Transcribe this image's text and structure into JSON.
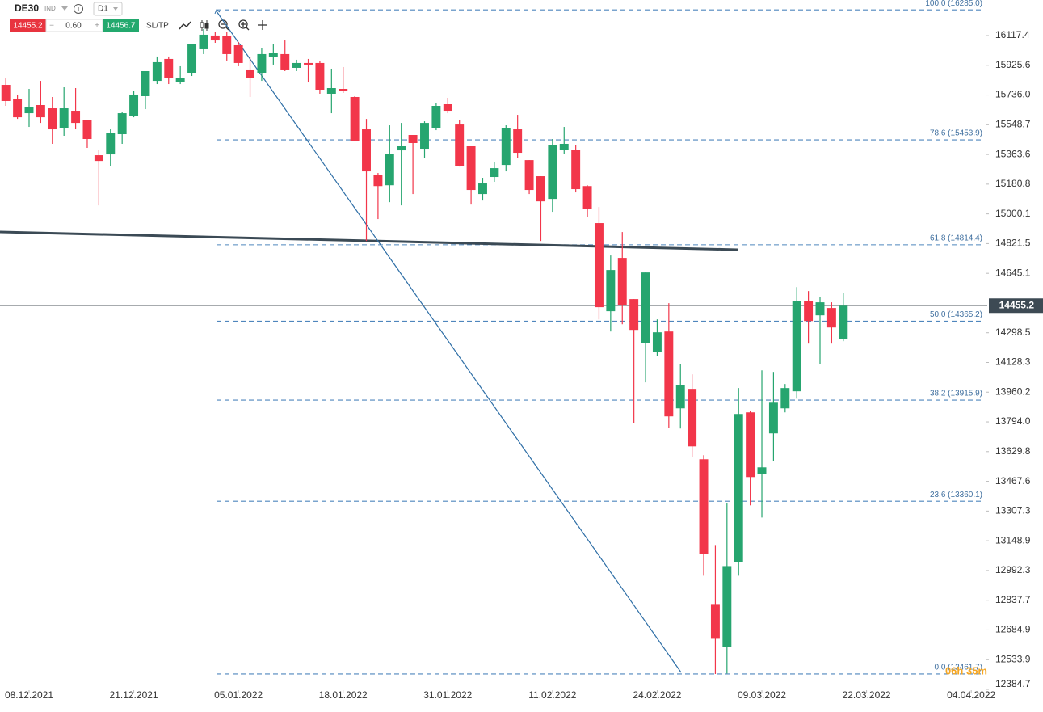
{
  "toolbar": {
    "symbol": "DE30",
    "market": "IND",
    "timeframe": "D1",
    "bid": "14455.2",
    "spread": "0.60",
    "ask": "14456.7",
    "sl_tp": "SL/TP",
    "timer": "06h 35m"
  },
  "chart_data": {
    "type": "candlestick",
    "log_scale": true,
    "up_color": "#26a56f",
    "down_color": "#f2364a",
    "xlim": [
      -0.5,
      84.1
    ],
    "ylim": [
      12384.7,
      16350
    ],
    "xticks": [
      {
        "value": 2,
        "label": "08.12.2021"
      },
      {
        "value": 11,
        "label": "21.12.2021"
      },
      {
        "value": 20,
        "label": "05.01.2022"
      },
      {
        "value": 29,
        "label": "18.01.2022"
      },
      {
        "value": 38,
        "label": "31.01.2022"
      },
      {
        "value": 47,
        "label": "11.02.2022"
      },
      {
        "value": 56,
        "label": "24.02.2022"
      },
      {
        "value": 65,
        "label": "09.03.2022"
      },
      {
        "value": 74,
        "label": "22.03.2022"
      },
      {
        "value": 83,
        "label": "04.04.2022"
      }
    ],
    "yticks": [
      16117.4,
      15925.6,
      {
        "value": 15736.0,
        "label": "15736.0"
      },
      15548.7,
      15363.6,
      15180.8,
      15000.1,
      14821.5,
      14645.1,
      14298.5,
      14128.3,
      13960.2,
      {
        "value": 13794.0,
        "label": "13794.0"
      },
      13629.8,
      13467.6,
      13307.3,
      13148.9,
      12992.3,
      12837.7,
      12684.9,
      12533.9,
      12384.7
    ],
    "last_price": 14455.2,
    "fib_levels": [
      {
        "label": "100.0 (16285.0)",
        "value": 16285.0
      },
      {
        "label": "78.6 (15453.9)",
        "value": 15453.9
      },
      {
        "label": "61.8 (14814.4)",
        "value": 14814.4
      },
      {
        "label": "50.0 (14365.2)",
        "value": 14365.2
      },
      {
        "label": "38.2 (13915.9)",
        "value": 13915.9
      },
      {
        "label": "23.6 (13360.1)",
        "value": 13360.1
      },
      {
        "label": "0.0 (12461.7)",
        "value": 12461.7
      }
    ],
    "open": [
      15800.3,
      15708.1,
      15621.1,
      15672.3,
      15651.8,
      15529.9,
      15636.5,
      15580.3,
      15358.8,
      15363.9,
      15489.6,
      15605.7,
      15728.6,
      15825.9,
      15966.2,
      15820.8,
      15877.8,
      16028.6,
      16117.7,
      16112.4,
      16054.6,
      15898.6,
      15877.8,
      15976.6,
      15997.4,
      15909.0,
      15940.2,
      15940.2,
      15744.0,
      15774.7,
      15723.5,
      15519.8,
      15239.3,
      15174.0,
      15388.9,
      15484.6,
      15399.0,
      15529.9,
      15677.4,
      15550.0,
      15414.2,
      15120.5,
      15224.5,
      15298.7,
      15519.8,
      15328.6,
      15229.4,
      15090.8,
      15394.1,
      15394.1,
      15169.0,
      14944.4,
      14423.0,
      14736.4,
      14493.6,
      14240.7,
      14189.7,
      14305.7,
      13869.6,
      13978.9,
      13587.9,
      12818.0,
      12598.3,
      13036.9,
      13847.1,
      13508.4,
      13730.4,
      13869.6,
      13965.2,
      14484.2,
      14399.2,
      14441.8,
      14263.9
    ],
    "high": [
      15841.4,
      15738.9,
      15774.7,
      15825.9,
      15723.5,
      15784.9,
      15779.8,
      15580.3,
      15394.1,
      15519.8,
      15631.3,
      15764.5,
      15888.2,
      15981.8,
      15981.8,
      15919.4,
      16059.8,
      16159.9,
      16138.8,
      16138.8,
      16075.4,
      15981.8,
      16033.8,
      16059.8,
      16085.8,
      15961.0,
      15966.2,
      15950.6,
      15903.8,
      15914.2,
      15728.6,
      15585.3,
      15249.2,
      15545.0,
      15560.0,
      15484.6,
      15570.1,
      15687.7,
      15718.4,
      15580.3,
      15414.2,
      15219.5,
      15318.5,
      15545.0,
      15610.9,
      15328.6,
      15229.4,
      15459.4,
      15534.9,
      15419.2,
      15174.0,
      15041.8,
      14750.8,
      14890.8,
      14493.6,
      14650.1,
      14375.7,
      14470.1,
      14120.2,
      14060.9,
      13610.0,
      13126.6,
      13350.9,
      13983.4,
      13856.1,
      14083.7,
      14074.6,
      14006.2,
      14564.2,
      14540.7,
      14507.7,
      14474.8,
      14531.3
    ],
    "low": [
      15667.2,
      15585.3,
      15534.9,
      15560.0,
      15429.3,
      15479.6,
      15519.8,
      15404.1,
      15051.5,
      15293.8,
      15429.3,
      15595.5,
      15646.7,
      15805.4,
      15805.4,
      15805.4,
      15857.0,
      15997.4,
      16070.2,
      15955.8,
      15919.4,
      15723.5,
      15825.9,
      15929.8,
      15888.2,
      15888.2,
      15815.7,
      15744.0,
      15621.1,
      15749.1,
      15444.4,
      14837.2,
      14968.7,
      15071.0,
      15051.5,
      15120.5,
      15343.7,
      15514.7,
      15621.1,
      15288.8,
      15056.4,
      15080.9,
      15194.8,
      15259.1,
      15343.7,
      15120.5,
      14837.2,
      15012.6,
      15368.8,
      15130.4,
      14983.3,
      14375.7,
      14305.7,
      14347.5,
      13788.7,
      14015.3,
      14166.5,
      13761.8,
      13757.3,
      13601.2,
      12965.0,
      12461.7,
      12464.0,
      12965.0,
      13337.9,
      13272.6,
      13579.1,
      13847.1,
      13924.0,
      14236.1,
      14120.2,
      14236.1,
      14250.0
    ],
    "close": [
      15697.9,
      15595.5,
      15657.0,
      15595.5,
      15519.8,
      15651.8,
      15560.0,
      15459.4,
      15323.5,
      15499.7,
      15621.1,
      15738.9,
      15888.2,
      15945.4,
      15846.6,
      15846.6,
      16059.8,
      16122.9,
      16085.8,
      15997.4,
      15940.2,
      15846.6,
      15997.4,
      16002.6,
      15898.6,
      15940.2,
      15929.8,
      15769.6,
      15779.8,
      15759.3,
      15449.4,
      15259.1,
      15169.0,
      15368.8,
      15414.2,
      15434.3,
      15560.0,
      15667.2,
      15636.5,
      15293.8,
      15145.3,
      15184.9,
      15278.9,
      15529.9,
      15373.9,
      15145.3,
      15075.9,
      15424.2,
      15429.3,
      15150.2,
      15032.0,
      14446.5,
      14664.5,
      14460.6,
      14315.0,
      14650.1,
      14301.1,
      13824.7,
      14001.6,
      13658.7,
      13079.5,
      12639.7,
      13015.5,
      13838.1,
      13490.8,
      13543.7,
      13901.1,
      13983.4,
      14484.2,
      14366.2,
      14474.8,
      14328.9,
      14455.2
    ]
  }
}
